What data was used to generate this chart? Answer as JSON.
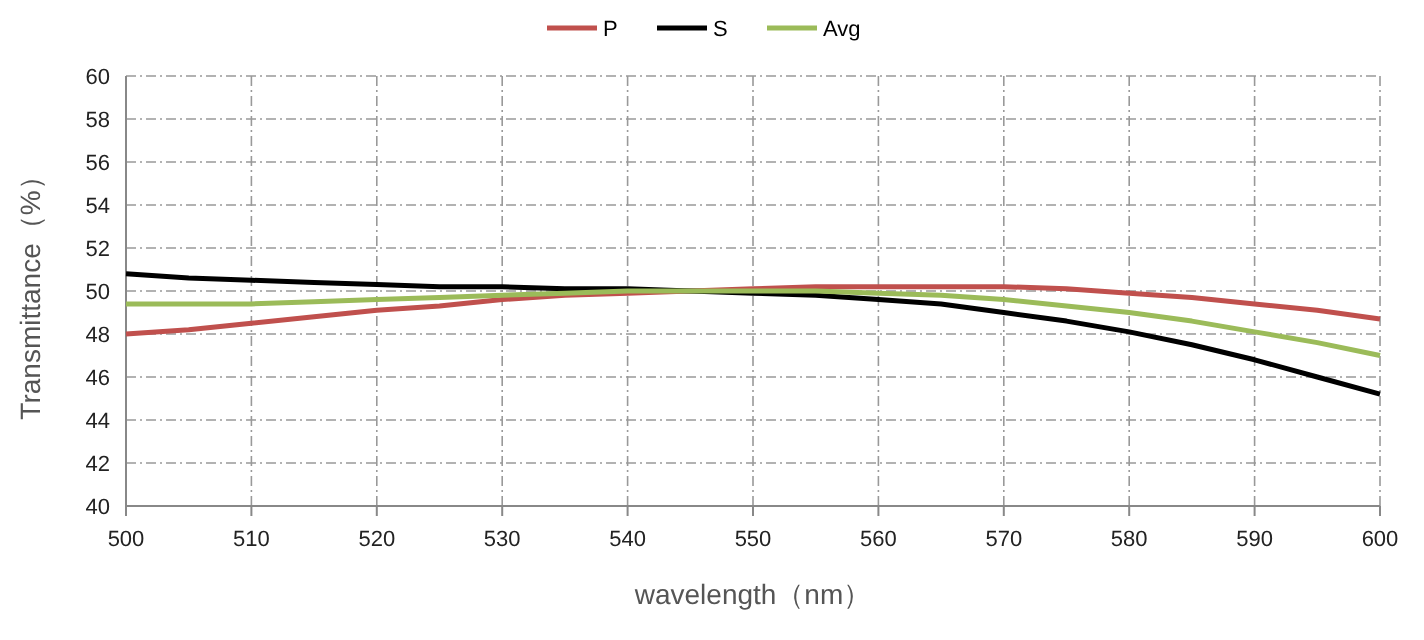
{
  "chart_data": {
    "type": "line",
    "xlabel": "wavelength（nm）",
    "ylabel": "Transmittance（%）",
    "x": [
      500,
      505,
      510,
      515,
      520,
      525,
      530,
      535,
      540,
      545,
      550,
      555,
      560,
      565,
      570,
      575,
      580,
      585,
      590,
      595,
      600
    ],
    "series": [
      {
        "name": "P",
        "color": "#c0504d",
        "values": [
          48.0,
          48.2,
          48.5,
          48.8,
          49.1,
          49.3,
          49.6,
          49.8,
          49.9,
          50.0,
          50.1,
          50.2,
          50.2,
          50.2,
          50.2,
          50.1,
          49.9,
          49.7,
          49.4,
          49.1,
          48.7
        ]
      },
      {
        "name": "S",
        "color": "#000000",
        "values": [
          50.8,
          50.6,
          50.5,
          50.4,
          50.3,
          50.2,
          50.2,
          50.1,
          50.1,
          50.0,
          49.9,
          49.8,
          49.6,
          49.4,
          49.0,
          48.6,
          48.1,
          47.5,
          46.8,
          46.0,
          45.2
        ]
      },
      {
        "name": "Avg",
        "color": "#9bbb59",
        "values": [
          49.4,
          49.4,
          49.4,
          49.5,
          49.6,
          49.7,
          49.8,
          49.9,
          50.0,
          50.0,
          50.0,
          50.0,
          49.9,
          49.8,
          49.6,
          49.3,
          49.0,
          48.6,
          48.1,
          47.6,
          47.0
        ]
      }
    ],
    "xlim": [
      500,
      600
    ],
    "xticks": [
      500,
      510,
      520,
      530,
      540,
      550,
      560,
      570,
      580,
      590,
      600
    ],
    "ylim": [
      40,
      60
    ],
    "yticks": [
      40,
      42,
      44,
      46,
      48,
      50,
      52,
      54,
      56,
      58,
      60
    ],
    "grid": true,
    "legend": "top",
    "line_style": "solid"
  }
}
